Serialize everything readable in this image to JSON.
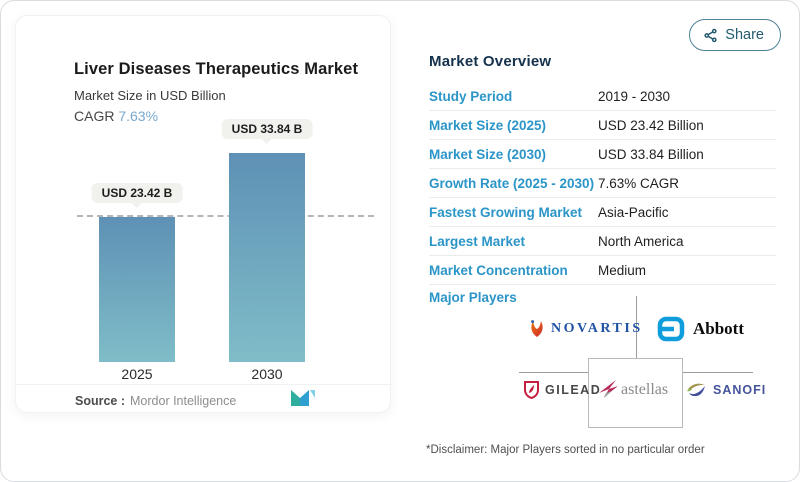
{
  "header": {
    "share_label": "Share"
  },
  "chart_card": {
    "title": "Liver Diseases Therapeutics Market",
    "subtitle": "Market Size in USD Billion",
    "cagr_label": "CAGR",
    "cagr_value": "7.63%",
    "bar_labels": [
      "USD 23.42 B",
      "USD 33.84 B"
    ],
    "x_labels": [
      "2025",
      "2030"
    ],
    "source_label": "Source :",
    "source_value": "Mordor Intelligence"
  },
  "chart_data": {
    "type": "bar",
    "categories": [
      "2025",
      "2030"
    ],
    "values": [
      23.42,
      33.84
    ],
    "value_labels": [
      "USD 23.42 B",
      "USD 33.84 B"
    ],
    "title": "Liver Diseases Therapeutics Market",
    "ylabel": "Market Size in USD Billion",
    "cagr_pct": 7.63,
    "reference_line_value": 23.42,
    "bar_gradient_top": "#5e91b5",
    "bar_gradient_bottom": "#7fbdc8",
    "grid": false,
    "legend": false
  },
  "overview": {
    "title": "Market Overview",
    "rows": [
      {
        "label": "Study Period",
        "value": "2019 - 2030"
      },
      {
        "label": "Market Size (2025)",
        "value": "USD 23.42 Billion"
      },
      {
        "label": "Market Size (2030)",
        "value": "USD 33.84 Billion"
      },
      {
        "label": "Growth Rate (2025 - 2030)",
        "value": "7.63% CAGR"
      },
      {
        "label": "Fastest Growing Market",
        "value": "Asia-Pacific"
      },
      {
        "label": "Largest Market",
        "value": "North America"
      },
      {
        "label": "Market Concentration",
        "value": "Medium"
      }
    ],
    "major_players_label": "Major Players",
    "players": [
      {
        "name": "NOVARTIS"
      },
      {
        "name": "Abbott"
      },
      {
        "name": "GILEAD"
      },
      {
        "name": "astellas"
      },
      {
        "name": "SANOFI"
      }
    ],
    "disclaimer": "*Disclaimer: Major Players sorted in no particular order"
  },
  "colors": {
    "label_blue": "#2b95c8",
    "heading_navy": "#15324c",
    "cagr_blue": "#79a9cf",
    "bar_top": "#5e91b5",
    "bar_bottom": "#7fbdc8",
    "share_teal": "#245b70",
    "dashed_line": "#b2b6b8"
  }
}
